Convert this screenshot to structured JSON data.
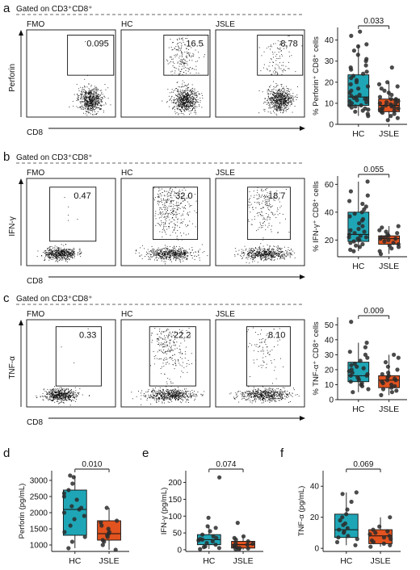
{
  "colors": {
    "hc": "#1fa6b6",
    "jsle": "#e2531f",
    "dot": "#2b2b2b"
  },
  "rows": [
    {
      "letter": "a",
      "gate_label": "Gated on CD3⁺CD8⁺",
      "y_axis_label": "Perforin",
      "x_axis_label": "CD8",
      "flow_panels": [
        {
          "label": "FMO",
          "value": "0.095"
        },
        {
          "label": "HC",
          "value": "16.5"
        },
        {
          "label": "JSLE",
          "value": "8.78"
        }
      ],
      "box_ylabel": "% Perforin⁺ CD8⁺ cells",
      "p_value": "0.033",
      "yticks": [
        0,
        10,
        20,
        30,
        40
      ],
      "ylim": [
        0,
        46
      ]
    },
    {
      "letter": "b",
      "gate_label": "Gated on CD3⁺CD8⁺",
      "y_axis_label": "IFN-γ",
      "x_axis_label": "CD8",
      "flow_panels": [
        {
          "label": "FMO",
          "value": "0.47"
        },
        {
          "label": "HC",
          "value": "32.0"
        },
        {
          "label": "JSLE",
          "value": "18.7"
        }
      ],
      "box_ylabel": "% IFN-γ⁺ CD8⁺ cells",
      "p_value": "0.055",
      "yticks": [
        20,
        40,
        60
      ],
      "ylim": [
        8,
        66
      ]
    },
    {
      "letter": "c",
      "gate_label": "Gated on CD3⁺CD8⁺",
      "y_axis_label": "TNF-α",
      "x_axis_label": "CD8",
      "flow_panels": [
        {
          "label": "FMO",
          "value": "0.33"
        },
        {
          "label": "HC",
          "value": "22.2"
        },
        {
          "label": "JSLE",
          "value": "8.10"
        }
      ],
      "box_ylabel": "% TNF-α⁺ CD8⁺ cells",
      "p_value": "0.009",
      "yticks": [
        0,
        10,
        20,
        30,
        40,
        50
      ],
      "ylim": [
        0,
        55
      ]
    }
  ],
  "chart_data": [
    {
      "type": "box",
      "panel": "a",
      "ylabel": "% Perforin⁺ CD8⁺ cells",
      "categories": [
        "HC",
        "JSLE"
      ],
      "ylim": [
        0,
        46
      ],
      "p_value": "0.033",
      "series": [
        {
          "name": "HC",
          "q1": 9,
          "median": 13,
          "q3": 23.5,
          "whisker_low": 4,
          "whisker_high": 38,
          "points": [
            4,
            5,
            6,
            6.5,
            7,
            7.5,
            8,
            8.5,
            9,
            9,
            10,
            10.5,
            11,
            11.5,
            12,
            12,
            12.5,
            13,
            13.5,
            14,
            15,
            16,
            17,
            18,
            19,
            20,
            21,
            22,
            23,
            24,
            25,
            26,
            27,
            28,
            30,
            31,
            33,
            35,
            37,
            38,
            42,
            44
          ]
        },
        {
          "name": "JSLE",
          "q1": 6,
          "median": 9,
          "q3": 12,
          "whisker_low": 2,
          "whisker_high": 20,
          "points": [
            2,
            3,
            4,
            5,
            5.5,
            6,
            6.5,
            7,
            7,
            7.5,
            8,
            8,
            8.5,
            9,
            9,
            9.5,
            10,
            10,
            10.5,
            11,
            11.5,
            12,
            12,
            13,
            14,
            15,
            16,
            17,
            18,
            19,
            20,
            27
          ]
        }
      ]
    },
    {
      "type": "box",
      "panel": "b",
      "ylabel": "% IFN-γ⁺ CD8⁺ cells",
      "categories": [
        "HC",
        "JSLE"
      ],
      "ylim": [
        8,
        66
      ],
      "p_value": "0.055",
      "series": [
        {
          "name": "HC",
          "q1": 19,
          "median": 24,
          "q3": 40,
          "whisker_low": 12,
          "whisker_high": 62,
          "points": [
            12,
            13,
            15,
            16,
            17,
            18,
            19,
            20,
            21,
            22,
            22,
            23,
            24,
            25,
            26,
            27,
            28,
            30,
            32,
            34,
            35,
            37,
            39,
            40,
            42,
            44,
            46,
            48,
            52,
            55,
            62
          ]
        },
        {
          "name": "JSLE",
          "q1": 17,
          "median": 21,
          "q3": 23,
          "whisker_low": 10,
          "whisker_high": 30,
          "points": [
            10,
            12,
            14,
            15,
            16,
            17,
            18,
            19,
            20,
            21,
            21,
            22,
            22,
            23,
            24,
            25,
            26,
            27,
            29,
            30
          ]
        }
      ]
    },
    {
      "type": "box",
      "panel": "c",
      "ylabel": "% TNF-α⁺ CD8⁺ cells",
      "categories": [
        "HC",
        "JSLE"
      ],
      "ylim": [
        0,
        55
      ],
      "p_value": "0.009",
      "series": [
        {
          "name": "HC",
          "q1": 12,
          "median": 16,
          "q3": 25,
          "whisker_low": 5,
          "whisker_high": 38,
          "points": [
            5,
            7,
            9,
            10,
            11,
            12,
            13,
            14,
            15,
            16,
            16,
            17,
            18,
            19,
            20,
            21,
            22,
            23,
            24,
            26,
            28,
            30,
            32,
            35,
            38,
            52
          ]
        },
        {
          "name": "JSLE",
          "q1": 8,
          "median": 13,
          "q3": 16,
          "whisker_low": 3,
          "whisker_high": 30,
          "points": [
            3,
            5,
            6,
            7,
            8,
            9,
            10,
            11,
            12,
            13,
            13,
            14,
            15,
            16,
            17,
            18,
            20,
            22,
            25,
            28,
            30
          ]
        }
      ]
    },
    {
      "type": "box",
      "panel": "d",
      "ylabel": "Perforin (pg/mL)",
      "categories": [
        "HC",
        "JSLE"
      ],
      "ylim": [
        800,
        3300
      ],
      "yticks": [
        1000,
        1500,
        2000,
        2500,
        3000
      ],
      "p_value": "0.010",
      "series": [
        {
          "name": "HC",
          "q1": 1300,
          "median": 2100,
          "q3": 2700,
          "whisker_low": 900,
          "whisker_high": 3150,
          "points": [
            900,
            1100,
            1250,
            1400,
            1600,
            1800,
            1900,
            2000,
            2100,
            2150,
            2200,
            2400,
            2500,
            2600,
            2700,
            2900,
            3100,
            3150
          ]
        },
        {
          "name": "JSLE",
          "q1": 1150,
          "median": 1350,
          "q3": 1750,
          "whisker_low": 850,
          "whisker_high": 2150,
          "points": [
            850,
            1000,
            1100,
            1150,
            1250,
            1300,
            1350,
            1400,
            1500,
            1600,
            1700,
            1750,
            2150
          ]
        }
      ]
    },
    {
      "type": "box",
      "panel": "e",
      "ylabel": "IFN-γ (pg/mL)",
      "categories": [
        "HC",
        "JSLE"
      ],
      "ylim": [
        -5,
        235
      ],
      "yticks": [
        0,
        50,
        100,
        150,
        200
      ],
      "p_value": "0.074",
      "series": [
        {
          "name": "HC",
          "q1": 15,
          "median": 30,
          "q3": 45,
          "whisker_low": 2,
          "whisker_high": 70,
          "points": [
            2,
            5,
            8,
            10,
            15,
            20,
            25,
            28,
            30,
            32,
            35,
            40,
            45,
            55,
            65,
            70,
            95,
            215
          ]
        },
        {
          "name": "JSLE",
          "q1": 5,
          "median": 15,
          "q3": 25,
          "whisker_low": 0,
          "whisker_high": 40,
          "points": [
            0,
            2,
            4,
            5,
            8,
            10,
            12,
            15,
            18,
            20,
            25,
            30,
            35,
            40,
            80
          ]
        }
      ]
    },
    {
      "type": "box",
      "panel": "f",
      "ylabel": "TNF-α (pg/mL)",
      "categories": [
        "HC",
        "JSLE"
      ],
      "ylim": [
        -2,
        50
      ],
      "yticks": [
        0,
        20,
        40
      ],
      "p_value": "0.069",
      "series": [
        {
          "name": "HC",
          "q1": 7,
          "median": 12,
          "q3": 22,
          "whisker_low": 2,
          "whisker_high": 36,
          "points": [
            2,
            4,
            6,
            7,
            8,
            10,
            11,
            12,
            13,
            15,
            16,
            18,
            20,
            22,
            25,
            30,
            35,
            36
          ]
        },
        {
          "name": "JSLE",
          "q1": 3,
          "median": 8,
          "q3": 12,
          "whisker_low": 1,
          "whisker_high": 20,
          "points": [
            1,
            2,
            3,
            4,
            5,
            6,
            7,
            8,
            9,
            10,
            11,
            12,
            14,
            20
          ]
        }
      ]
    }
  ]
}
